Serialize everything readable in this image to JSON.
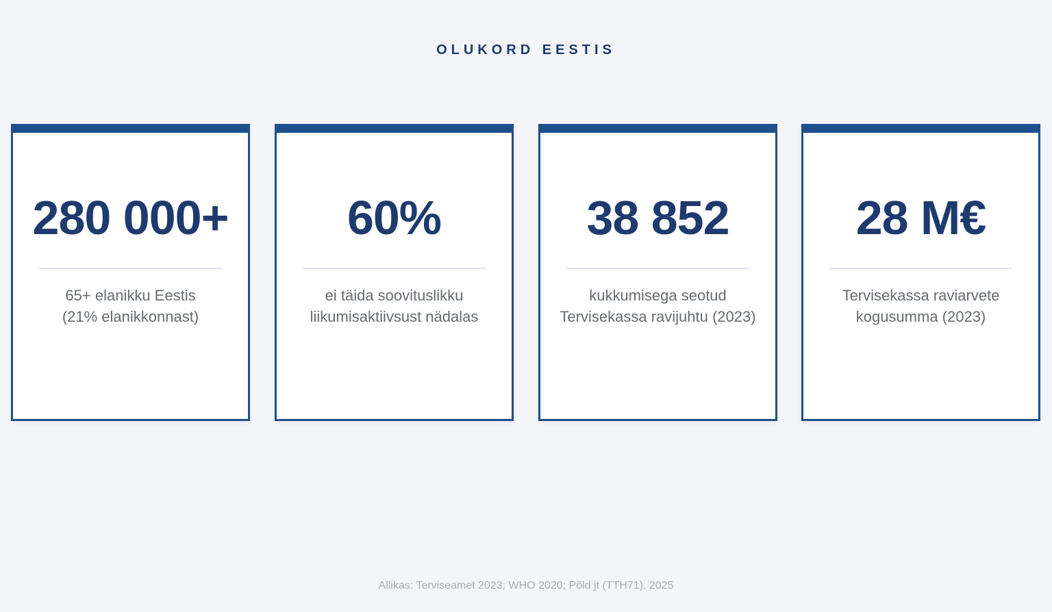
{
  "title": "OLUKORD EESTIS",
  "cards": [
    {
      "value": "280 000+",
      "description": "65+ elanikku Eestis\n(21% elanikkonnast)"
    },
    {
      "value": "60%",
      "description": "ei täida soovituslikku\nliikumisaktiivsust nädalas"
    },
    {
      "value": "38 852",
      "description": "kukkumisega seotud\nTervisekassa ravijuhtu (2023)"
    },
    {
      "value": "28 M€",
      "description": "Tervisekassa raviarvete\nkogusumma (2023)"
    }
  ],
  "source": "Allikas: Terviseamet 2023; WHO 2020; Põld jt (TTH71), 2025",
  "colors": {
    "accent": "#1f4f8b",
    "number": "#1e3a6e",
    "background": "#f3f5f9"
  }
}
